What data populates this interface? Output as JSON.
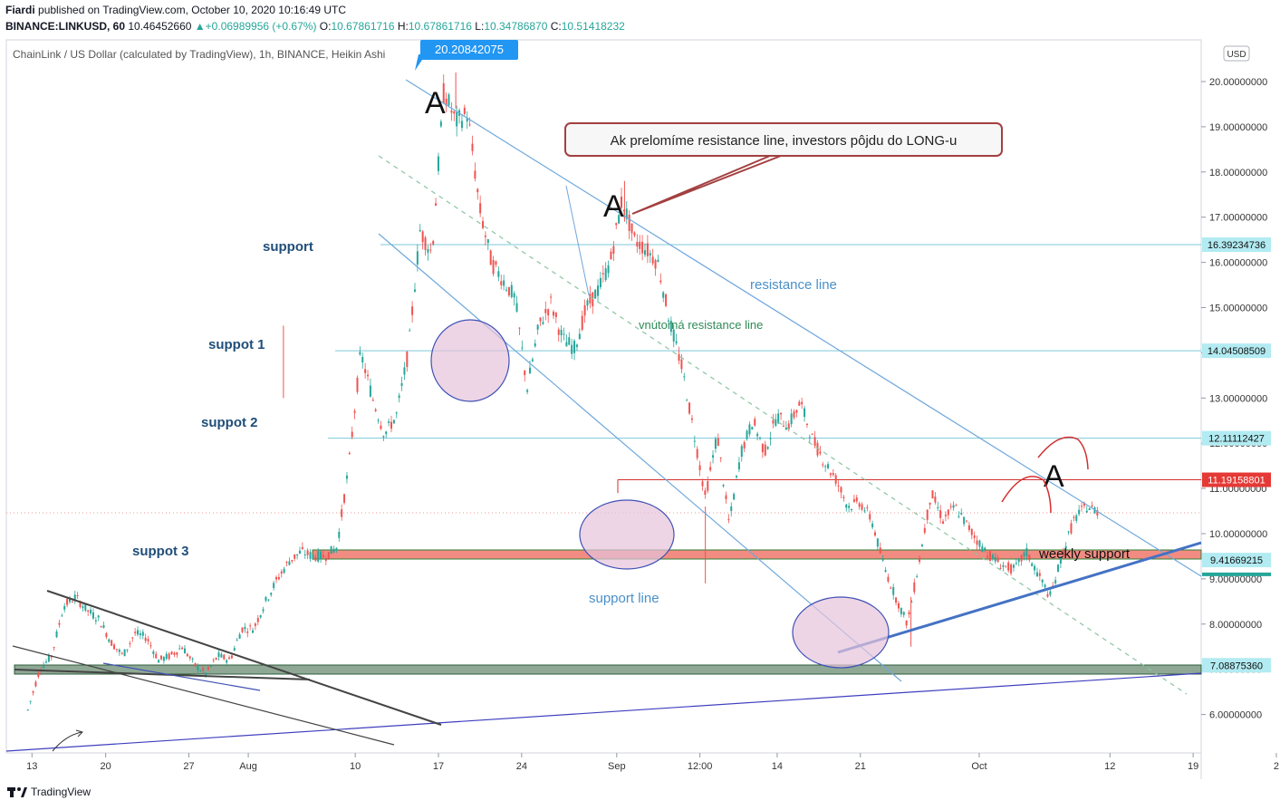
{
  "header": {
    "publisher": "Fiardi",
    "published_text": "published on TradingView.com, October 10, 2020 10:16:49 UTC",
    "symbol_line": "BINANCE:LINKUSD, 60",
    "last_price": "10.46452660",
    "change": "+0.06989956 (+0.67%)",
    "o_label": "O:",
    "o": "10.67861716",
    "h_label": "H:",
    "h": "10.67861716",
    "l_label": "L:",
    "l": "10.34786870",
    "c_label": "C:",
    "c": "10.51418232"
  },
  "footer": {
    "brand": "TradingView"
  },
  "chart_data": {
    "type": "line",
    "title": "ChainLink / US Dollar (calculated by TradingView), 1h, BINANCE, Heikin Ashi",
    "currency": "USD",
    "ylim": [
      5.1,
      20.8
    ],
    "yticks": [
      "20.00000000",
      "19.00000000",
      "18.00000000",
      "17.00000000",
      "16.00000000",
      "15.00000000",
      "14.00000000",
      "13.00000000",
      "12.00000000",
      "11.00000000",
      "10.00000000",
      "9.00000000",
      "8.00000000",
      "7.00000000",
      "6.00000000"
    ],
    "ytick_values": [
      20,
      19,
      18,
      17,
      16,
      15,
      14,
      13,
      12,
      11,
      10,
      9,
      8,
      7,
      6
    ],
    "xlim": [
      0,
      90
    ],
    "xticks": [
      {
        "label": "13",
        "day": 0.8
      },
      {
        "label": "20",
        "day": 7
      },
      {
        "label": "27",
        "day": 14
      },
      {
        "label": "Aug",
        "day": 19
      },
      {
        "label": "10",
        "day": 28
      },
      {
        "label": "17",
        "day": 35
      },
      {
        "label": "24",
        "day": 42
      },
      {
        "label": "Sep",
        "day": 50
      },
      {
        "label": "12:00",
        "day": 57
      },
      {
        "label": "14",
        "day": 63.5
      },
      {
        "label": "21",
        "day": 70.5
      },
      {
        "label": "Oct",
        "day": 80.5
      },
      {
        "label": "12",
        "day": 91.5
      },
      {
        "label": "19",
        "day": 98.5
      },
      {
        "label": "2",
        "day": 105.5
      }
    ],
    "price_path": [
      [
        0,
        6.1
      ],
      [
        1,
        7.0
      ],
      [
        2,
        7.3
      ],
      [
        3,
        8.4
      ],
      [
        4,
        8.6
      ],
      [
        5,
        8.3
      ],
      [
        6,
        8.1
      ],
      [
        7,
        7.6
      ],
      [
        8,
        7.3
      ],
      [
        9,
        7.8
      ],
      [
        10,
        7.7
      ],
      [
        11,
        7.2
      ],
      [
        12,
        7.3
      ],
      [
        13,
        7.5
      ],
      [
        14,
        7.1
      ],
      [
        15,
        6.9
      ],
      [
        16,
        7.3
      ],
      [
        17,
        7.2
      ],
      [
        18,
        7.9
      ],
      [
        19,
        7.9
      ],
      [
        20,
        8.5
      ],
      [
        21,
        9.0
      ],
      [
        22,
        9.4
      ],
      [
        23,
        9.6
      ],
      [
        24,
        9.5
      ],
      [
        25,
        9.5
      ],
      [
        26,
        9.7
      ],
      [
        27,
        11.5
      ],
      [
        28,
        14.0
      ],
      [
        29,
        13.0
      ],
      [
        30,
        12.2
      ],
      [
        31,
        12.6
      ],
      [
        32,
        14.0
      ],
      [
        33,
        16.7
      ],
      [
        34,
        16.2
      ],
      [
        35,
        19.8
      ],
      [
        36,
        19.1
      ],
      [
        37,
        19.3
      ],
      [
        38,
        17.2
      ],
      [
        39,
        16.0
      ],
      [
        40,
        15.6
      ],
      [
        41,
        15.2
      ],
      [
        42,
        13.2
      ],
      [
        43,
        14.6
      ],
      [
        44,
        15.1
      ],
      [
        45,
        14.3
      ],
      [
        46,
        14.1
      ],
      [
        47,
        15.0
      ],
      [
        48,
        15.4
      ],
      [
        49,
        16.0
      ],
      [
        50,
        17.4
      ],
      [
        51,
        16.5
      ],
      [
        52,
        16.3
      ],
      [
        53,
        16.0
      ],
      [
        54,
        14.7
      ],
      [
        55,
        13.7
      ],
      [
        56,
        12.3
      ],
      [
        57,
        10.8
      ],
      [
        58,
        12.2
      ],
      [
        59,
        10.2
      ],
      [
        60,
        11.8
      ],
      [
        61,
        12.5
      ],
      [
        62,
        11.8
      ],
      [
        63,
        12.6
      ],
      [
        64,
        12.4
      ],
      [
        65,
        12.9
      ],
      [
        66,
        12.1
      ],
      [
        67,
        11.6
      ],
      [
        68,
        11.2
      ],
      [
        69,
        10.6
      ],
      [
        70,
        10.7
      ],
      [
        71,
        10.3
      ],
      [
        72,
        9.3
      ],
      [
        73,
        8.6
      ],
      [
        74,
        8.0
      ],
      [
        75,
        9.4
      ],
      [
        76,
        10.9
      ],
      [
        77,
        10.3
      ],
      [
        78,
        10.6
      ],
      [
        79,
        10.2
      ],
      [
        80,
        9.8
      ],
      [
        81,
        9.5
      ],
      [
        82,
        9.3
      ],
      [
        83,
        9.2
      ],
      [
        84,
        9.6
      ],
      [
        85,
        9.1
      ],
      [
        86,
        8.6
      ],
      [
        87,
        9.5
      ],
      [
        88,
        10.3
      ],
      [
        89,
        10.6
      ],
      [
        90,
        10.5
      ]
    ],
    "price_labels": [
      {
        "value": 16.39234736,
        "text": "16.39234736"
      },
      {
        "value": 14.04508509,
        "text": "14.04508509"
      },
      {
        "value": 12.11112427,
        "text": "12.11112427"
      },
      {
        "value": 11.19158801,
        "text": "11.19158801"
      },
      {
        "value": 9.41669215,
        "text": "9.41669215"
      },
      {
        "value": 7.0887536,
        "text": "7.08875360"
      }
    ],
    "high_callout": "20.20842075",
    "annotations": [
      {
        "text": "support"
      },
      {
        "text": "suppot 1"
      },
      {
        "text": "suppot 2"
      },
      {
        "text": "suppot 3"
      },
      {
        "text": "resistance line"
      },
      {
        "text": "vnútorná resistance line"
      },
      {
        "text": "support line"
      },
      {
        "text": "weekly support"
      },
      {
        "text": "Ak prelomíme resistance line, investors pôjdu do LONG-u"
      },
      {
        "text": "A"
      }
    ],
    "colors": {
      "up": "#26a69a",
      "down": "#ef5350",
      "trend_line": "#6fa8dc",
      "support_line": "#4472c4",
      "horizontal": "#7ec8d8",
      "red_level": "#d32f2f",
      "weekly_band": "#f28b82",
      "green_band": "#8fa895",
      "circle_fill": "#e6c3dc",
      "circle_stroke": "#3f51b5",
      "callout_border": "#a34040",
      "label_blue": "#1e88e5",
      "text_dark_blue": "#1f4e79"
    },
    "grid": false,
    "legend": "none"
  }
}
